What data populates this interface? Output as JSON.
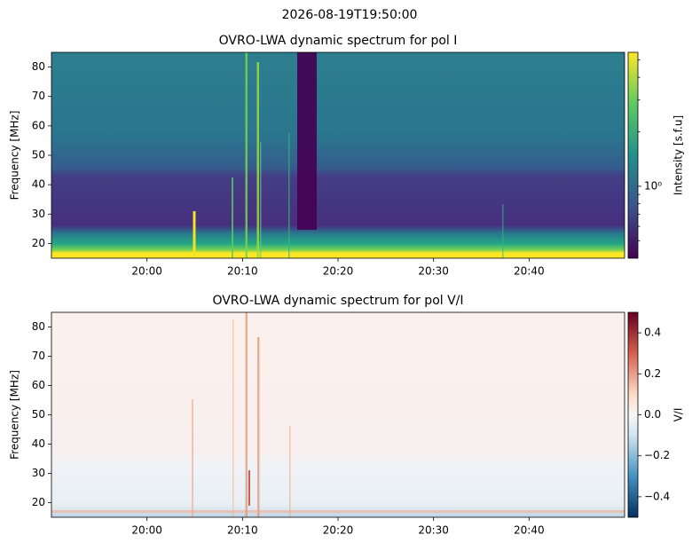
{
  "figure_title": "2026-08-19T19:50:00",
  "chart_data": [
    {
      "type": "heatmap",
      "title": "OVRO-LWA dynamic spectrum for pol I",
      "ylabel": "Frequency [MHz]",
      "xlim": [
        "19:50",
        "20:50"
      ],
      "xticks": [
        "20:00",
        "20:10",
        "20:20",
        "20:30",
        "20:40"
      ],
      "ylim": [
        15,
        85
      ],
      "yticks": [
        20,
        30,
        40,
        50,
        60,
        70,
        80
      ],
      "colorbar": {
        "label": "Intensity [s.f.u]",
        "colormap": "viridis",
        "scale": "log",
        "lim": [
          0.4,
          5.5
        ],
        "ticks": [
          {
            "value": 1,
            "label": "10⁰"
          }
        ],
        "minor_ticks": [
          0.5,
          0.6,
          0.7,
          0.8,
          0.9,
          2,
          3,
          4,
          5
        ]
      }
    },
    {
      "type": "heatmap",
      "title": "OVRO-LWA dynamic spectrum for pol V/I",
      "ylabel": "Frequency [MHz]",
      "xlim": [
        "19:50",
        "20:50"
      ],
      "xticks": [
        "20:00",
        "20:10",
        "20:20",
        "20:30",
        "20:40"
      ],
      "ylim": [
        15,
        85
      ],
      "yticks": [
        20,
        30,
        40,
        50,
        60,
        70,
        80
      ],
      "colorbar": {
        "label": "V/I",
        "colormap": "RdBu_r",
        "scale": "linear",
        "lim": [
          -0.5,
          0.5
        ],
        "ticks": [
          {
            "value": -0.4,
            "label": "−0.4"
          },
          {
            "value": -0.2,
            "label": "−0.2"
          },
          {
            "value": 0,
            "label": "0.0"
          },
          0.2,
          0.4
        ],
        "minor_ticks": []
      }
    }
  ]
}
